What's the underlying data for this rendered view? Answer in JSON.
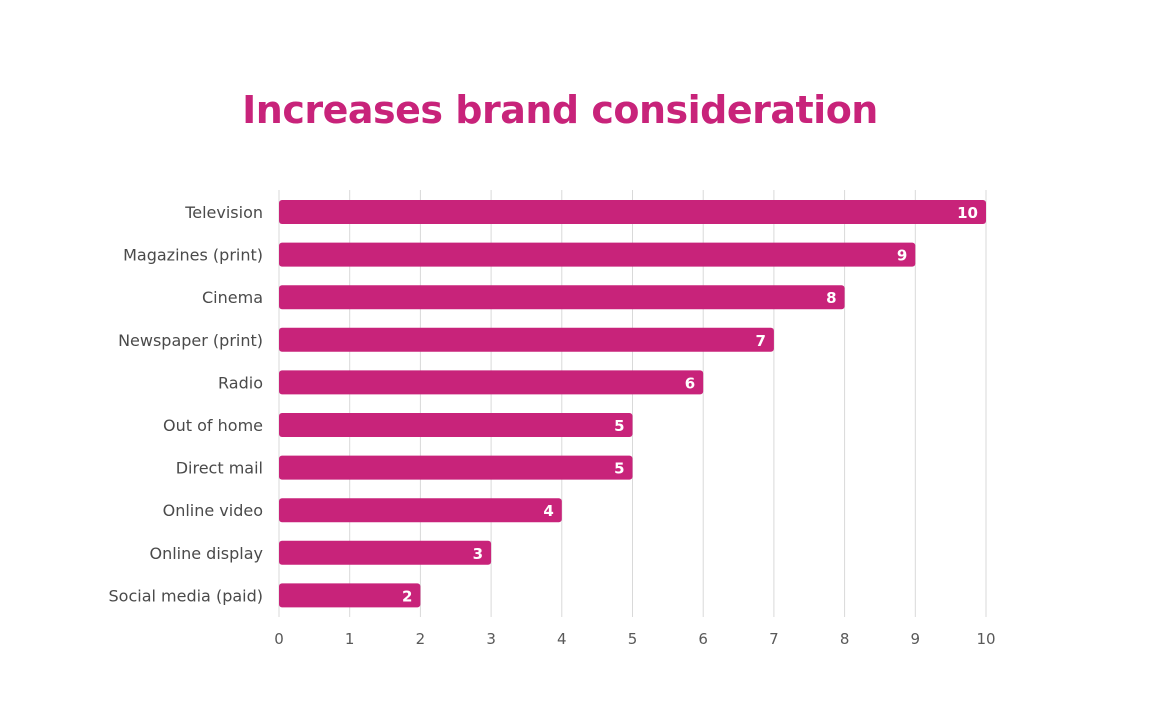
{
  "chart_data": {
    "type": "bar",
    "orientation": "horizontal",
    "title": "Increases brand consideration",
    "categories": [
      "Television",
      "Magazines (print)",
      "Cinema",
      "Newspaper (print)",
      "Radio",
      "Out of home",
      "Direct mail",
      "Online video",
      "Online display",
      "Social media (paid)"
    ],
    "values": [
      10,
      9,
      8,
      7,
      6,
      5,
      5,
      4,
      3,
      2
    ],
    "xlim": [
      0,
      10
    ],
    "xticks": [
      "0",
      "1",
      "2",
      "3",
      "4",
      "5",
      "6",
      "7",
      "8",
      "9",
      "10"
    ],
    "xlabel": "",
    "ylabel": "",
    "grid": "vertical",
    "legend": "none",
    "data_labels": "inside-end"
  },
  "colors": {
    "bar": "#C8237A",
    "title": "#C8237A",
    "bar_label": "#FFFFFF",
    "category_label": "#4A4A4A",
    "tick_label": "#595959",
    "gridline": "#D9D9D9"
  }
}
